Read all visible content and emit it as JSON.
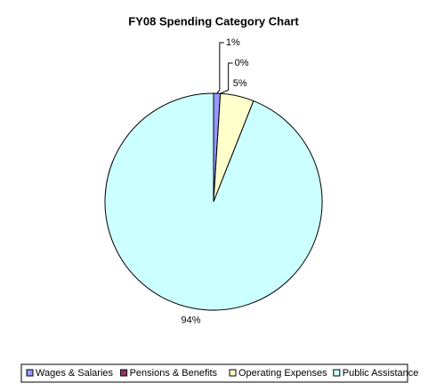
{
  "chart_data": {
    "type": "pie",
    "title": "FY08 Spending Category Chart",
    "categories": [
      "Wages & Salaries",
      "Pensions & Benefits",
      "Operating Expenses",
      "Public Assistance"
    ],
    "values": [
      1,
      0,
      5,
      94
    ],
    "value_labels": [
      "1%",
      "0%",
      "5%",
      "94%"
    ],
    "colors": [
      "#9999ff",
      "#993366",
      "#ffffcc",
      "#ccffff"
    ],
    "legend": "bottom"
  }
}
